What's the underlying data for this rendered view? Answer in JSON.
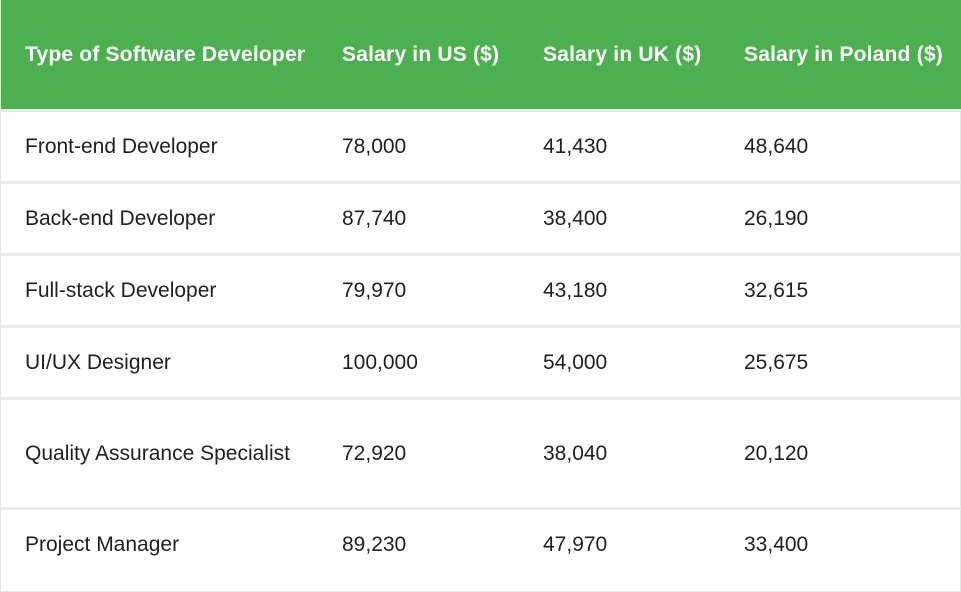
{
  "table": {
    "headers": [
      "Type of Software Developer",
      "Salary in US ($)",
      "Salary in UK ($)",
      "Salary in Poland ($)"
    ],
    "rows": [
      [
        "Front-end Developer",
        "78,000",
        "41,430",
        "48,640"
      ],
      [
        "Back-end Developer",
        "87,740",
        "38,400",
        "26,190"
      ],
      [
        "Full-stack Developer",
        "79,970",
        "43,180",
        "32,615"
      ],
      [
        "UI/UX Designer",
        "100,000",
        "54,000",
        "25,675"
      ],
      [
        "Quality Assurance Specialist",
        "72,920",
        "38,040",
        "20,120"
      ],
      [
        "Project Manager",
        "89,230",
        "47,970",
        "33,400"
      ]
    ]
  },
  "colors": {
    "header_background": "#4caf50",
    "header_text": "#ffffff",
    "row_divider": "#e9e9e9"
  }
}
